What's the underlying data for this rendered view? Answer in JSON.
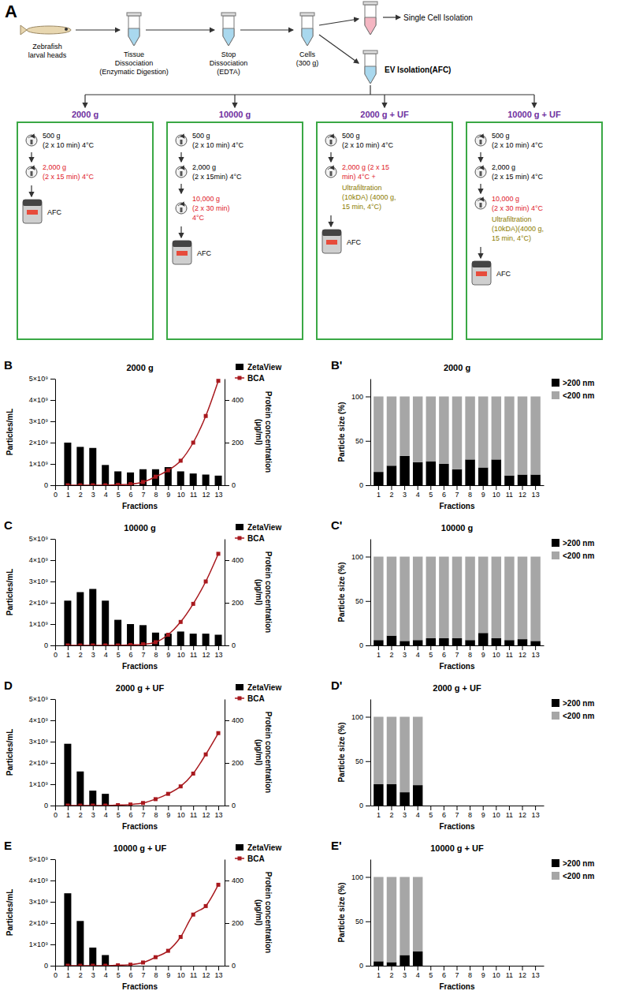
{
  "diagram": {
    "panel": "A",
    "flow": [
      {
        "label": [
          "Zebrafish",
          "larval heads"
        ]
      },
      {
        "label": [
          "Tissue",
          "Dissociation",
          "(Enzymatic Digestion)"
        ]
      },
      {
        "label": [
          "Stop",
          "Dissociation",
          "(EDTA)"
        ]
      },
      {
        "label": [
          "Cells",
          "(300 g)"
        ]
      }
    ],
    "branches": [
      {
        "label": "Single Cell Isolation"
      },
      {
        "label": "EV Isolation(AFC)"
      }
    ],
    "boxes": [
      {
        "title": "2000 g",
        "device": "AFC",
        "steps": [
          {
            "kind": "centrifuge",
            "color": "#000000",
            "lines": [
              "500 g",
              "(2 x 10 min) 4°C"
            ]
          },
          {
            "kind": "centrifuge",
            "color": "#e0202a",
            "lines": [
              "2,000 g",
              "(2 x 15 min) 4°C"
            ]
          }
        ]
      },
      {
        "title": "10000 g",
        "device": "AFC",
        "steps": [
          {
            "kind": "centrifuge",
            "color": "#000000",
            "lines": [
              "500 g",
              "(2 x 10 min) 4°C"
            ]
          },
          {
            "kind": "centrifuge",
            "color": "#000000",
            "lines": [
              "2,000 g",
              "(2 x 15min) 4°C"
            ]
          },
          {
            "kind": "centrifuge",
            "color": "#e0202a",
            "lines": [
              "10,000 g",
              "(2 x 30 min)",
              "4°C"
            ]
          }
        ]
      },
      {
        "title": "2000 g + UF",
        "device": "AFC",
        "steps": [
          {
            "kind": "centrifuge",
            "color": "#000000",
            "lines": [
              "500 g",
              "(2 x 10 min) 4°C"
            ]
          },
          {
            "kind": "centrifuge",
            "color": "#e0202a",
            "lines": [
              "2,000 g (2 x 15",
              "min) 4°C +"
            ]
          },
          {
            "kind": "filter",
            "color": "#8c7b00",
            "lines": [
              "Ultrafiltration",
              "(10kDA) (4000 g,",
              "15 min, 4°C)"
            ]
          }
        ]
      },
      {
        "title": "10000 g + UF",
        "device": "AFC",
        "steps": [
          {
            "kind": "centrifuge",
            "color": "#000000",
            "lines": [
              "500 g",
              "(2 x 10 min) 4°C"
            ]
          },
          {
            "kind": "centrifuge",
            "color": "#000000",
            "lines": [
              "2,000 g",
              "(2 x 15 min) 4°C"
            ]
          },
          {
            "kind": "centrifuge",
            "color": "#e0202a",
            "lines": [
              "10,000 g",
              "(2 x 30 min) 4°C"
            ]
          },
          {
            "kind": "filter",
            "color": "#8c7b00",
            "lines": [
              "Ultrafiltration",
              "(10kDA)(4000 g,",
              "15 min, 4°C)"
            ]
          }
        ]
      }
    ]
  },
  "chart_data": [
    {
      "type": "bar",
      "panel": "B",
      "title": "2000 g",
      "xlabel": "Fractions",
      "ylabel": "Particles/mL",
      "y2label": "Protein concentration (µg/ml)",
      "x": [
        1,
        2,
        3,
        4,
        5,
        6,
        7,
        8,
        9,
        10,
        11,
        12,
        13
      ],
      "xlim": [
        0,
        13.5
      ],
      "xticks": [
        0,
        1,
        2,
        3,
        4,
        5,
        6,
        7,
        8,
        9,
        10,
        11,
        12,
        13
      ],
      "ylim": [
        0,
        5000000000
      ],
      "yticks": [
        0,
        {
          "value": 1000000000,
          "label": "1×10⁹"
        },
        {
          "value": 2000000000,
          "label": "2×10⁹"
        },
        {
          "value": 3000000000,
          "label": "3×10⁹"
        },
        {
          "value": 4000000000,
          "label": "4×10⁹"
        },
        {
          "value": 5000000000,
          "label": "5×10⁹"
        }
      ],
      "y2lim": [
        0,
        500
      ],
      "y2ticks": [
        0,
        200,
        400
      ],
      "legend": "upper right",
      "series": [
        {
          "name": "ZetaView",
          "type": "bar",
          "color": "#000000",
          "values": [
            2000000000,
            1800000000,
            1750000000,
            950000000,
            650000000,
            600000000,
            750000000,
            750000000,
            850000000,
            650000000,
            550000000,
            500000000,
            450000000
          ]
        },
        {
          "name": "BCA",
          "type": "line",
          "axis": "y2",
          "color": "#a8191e",
          "marker": "square",
          "values": [
            0,
            0,
            0,
            0,
            2,
            5,
            15,
            40,
            70,
            115,
            200,
            325,
            490
          ]
        }
      ]
    },
    {
      "type": "bar",
      "stacked": true,
      "panel": "B'",
      "title": "2000 g",
      "xlabel": "Fractions",
      "ylabel": "Particle size (%)",
      "categories": [
        "1",
        "2",
        "3",
        "4",
        "5",
        "6",
        "7",
        "8",
        "9",
        "10",
        "11",
        "12",
        "13"
      ],
      "ylim": [
        0,
        120
      ],
      "yticks": [
        0,
        50,
        100
      ],
      "legend": "upper right",
      "series": [
        {
          "name": ">200 nm",
          "color": "#000000",
          "values": [
            15,
            22,
            33,
            26,
            27,
            24,
            18,
            29,
            20,
            29,
            11,
            12,
            12
          ]
        },
        {
          "name": "<200 nm",
          "color": "#a6a6a6",
          "values": [
            85,
            78,
            67,
            74,
            73,
            76,
            82,
            71,
            80,
            71,
            89,
            88,
            88
          ]
        }
      ]
    },
    {
      "type": "bar",
      "panel": "C",
      "title": "10000 g",
      "xlabel": "Fractions",
      "ylabel": "Particles/mL",
      "y2label": "Protein concentration (µg/ml)",
      "x": [
        1,
        2,
        3,
        4,
        5,
        6,
        7,
        8,
        9,
        10,
        11,
        12,
        13
      ],
      "xlim": [
        0,
        13.5
      ],
      "xticks": [
        0,
        1,
        2,
        3,
        4,
        5,
        6,
        7,
        8,
        9,
        10,
        11,
        12,
        13
      ],
      "ylim": [
        0,
        5000000000
      ],
      "yticks": [
        0,
        {
          "value": 1000000000,
          "label": "1×10⁹"
        },
        {
          "value": 2000000000,
          "label": "2×10⁹"
        },
        {
          "value": 3000000000,
          "label": "3×10⁹"
        },
        {
          "value": 4000000000,
          "label": "4×10⁹"
        },
        {
          "value": 5000000000,
          "label": "5×10⁹"
        }
      ],
      "y2lim": [
        0,
        500
      ],
      "y2ticks": [
        0,
        200,
        400
      ],
      "legend": "upper right",
      "series": [
        {
          "name": "ZetaView",
          "type": "bar",
          "color": "#000000",
          "values": [
            2100000000,
            2500000000,
            2650000000,
            2100000000,
            1200000000,
            1000000000,
            950000000,
            600000000,
            550000000,
            650000000,
            550000000,
            550000000,
            500000000
          ]
        },
        {
          "name": "BCA",
          "type": "line",
          "axis": "y2",
          "color": "#a8191e",
          "marker": "square",
          "values": [
            0,
            0,
            0,
            0,
            0,
            2,
            5,
            15,
            50,
            110,
            195,
            300,
            430
          ]
        }
      ]
    },
    {
      "type": "bar",
      "stacked": true,
      "panel": "C'",
      "title": "10000 g",
      "xlabel": "Fractions",
      "ylabel": "Particle size (%)",
      "categories": [
        "1",
        "2",
        "3",
        "4",
        "5",
        "6",
        "7",
        "8",
        "9",
        "10",
        "11",
        "12",
        "13"
      ],
      "ylim": [
        0,
        120
      ],
      "yticks": [
        0,
        50,
        100
      ],
      "legend": "upper right",
      "series": [
        {
          "name": ">200 nm",
          "color": "#000000",
          "values": [
            6,
            11,
            5,
            6,
            8,
            8,
            8,
            6,
            14,
            8,
            6,
            7,
            5
          ]
        },
        {
          "name": "<200 nm",
          "color": "#a6a6a6",
          "values": [
            94,
            89,
            95,
            94,
            92,
            92,
            92,
            94,
            86,
            92,
            94,
            93,
            95
          ]
        }
      ]
    },
    {
      "type": "bar",
      "panel": "D",
      "title": "2000 g + UF",
      "xlabel": "Fractions",
      "ylabel": "Particles/mL",
      "y2label": "Protein concentration (µg/ml)",
      "x": [
        1,
        2,
        3,
        4,
        5,
        6,
        7,
        8,
        9,
        10,
        11,
        12,
        13
      ],
      "xlim": [
        0,
        13.5
      ],
      "xticks": [
        0,
        1,
        2,
        3,
        4,
        5,
        6,
        7,
        8,
        9,
        10,
        11,
        12,
        13
      ],
      "ylim": [
        0,
        5000000000
      ],
      "yticks": [
        0,
        {
          "value": 1000000000,
          "label": "1×10⁹"
        },
        {
          "value": 2000000000,
          "label": "2×10⁹"
        },
        {
          "value": 3000000000,
          "label": "3×10⁹"
        },
        {
          "value": 4000000000,
          "label": "4×10⁹"
        },
        {
          "value": 5000000000,
          "label": "5×10⁹"
        }
      ],
      "y2lim": [
        0,
        500
      ],
      "y2ticks": [
        0,
        200,
        400
      ],
      "legend": "upper right",
      "series": [
        {
          "name": "ZetaView",
          "type": "bar",
          "color": "#000000",
          "values": [
            2900000000,
            1600000000,
            700000000,
            550000000,
            null,
            null,
            null,
            null,
            null,
            null,
            null,
            null,
            null
          ]
        },
        {
          "name": "BCA",
          "type": "line",
          "axis": "y2",
          "color": "#a8191e",
          "marker": "square",
          "values": [
            0,
            0,
            0,
            0,
            2,
            5,
            12,
            30,
            55,
            90,
            150,
            240,
            340
          ]
        }
      ]
    },
    {
      "type": "bar",
      "stacked": true,
      "panel": "D'",
      "title": "2000 g + UF",
      "xlabel": "Fractions",
      "ylabel": "Particle size (%)",
      "categories": [
        "1",
        "2",
        "3",
        "4",
        "5",
        "6",
        "7",
        "8",
        "9",
        "10",
        "11",
        "12",
        "13"
      ],
      "ylim": [
        0,
        120
      ],
      "yticks": [
        0,
        50,
        100
      ],
      "legend": "upper right",
      "series": [
        {
          "name": ">200 nm",
          "color": "#000000",
          "values": [
            24,
            24,
            15,
            23,
            null,
            null,
            null,
            null,
            null,
            null,
            null,
            null,
            null
          ]
        },
        {
          "name": "<200 nm",
          "color": "#a6a6a6",
          "values": [
            76,
            76,
            85,
            77,
            null,
            null,
            null,
            null,
            null,
            null,
            null,
            null,
            null
          ]
        }
      ]
    },
    {
      "type": "bar",
      "panel": "E",
      "title": "10000 g + UF",
      "xlabel": "Fractions",
      "ylabel": "Particles/mL",
      "y2label": "Protein concentration (µg/ml)",
      "x": [
        1,
        2,
        3,
        4,
        5,
        6,
        7,
        8,
        9,
        10,
        11,
        12,
        13
      ],
      "xlim": [
        0,
        13.5
      ],
      "xticks": [
        0,
        1,
        2,
        3,
        4,
        5,
        6,
        7,
        8,
        9,
        10,
        11,
        12,
        13
      ],
      "ylim": [
        0,
        5000000000
      ],
      "yticks": [
        0,
        {
          "value": 1000000000,
          "label": "1×10⁹"
        },
        {
          "value": 2000000000,
          "label": "2×10⁹"
        },
        {
          "value": 3000000000,
          "label": "3×10⁹"
        },
        {
          "value": 4000000000,
          "label": "4×10⁹"
        },
        {
          "value": 5000000000,
          "label": "5×10⁹"
        }
      ],
      "y2lim": [
        0,
        500
      ],
      "y2ticks": [
        0,
        200,
        400
      ],
      "legend": "upper right",
      "series": [
        {
          "name": "ZetaView",
          "type": "bar",
          "color": "#000000",
          "values": [
            3400000000,
            2100000000,
            850000000,
            500000000,
            null,
            null,
            null,
            null,
            null,
            null,
            null,
            null,
            null
          ]
        },
        {
          "name": "BCA",
          "type": "line",
          "axis": "y2",
          "color": "#a8191e",
          "marker": "square",
          "values": [
            0,
            0,
            0,
            0,
            2,
            5,
            15,
            40,
            70,
            135,
            240,
            280,
            380
          ]
        }
      ]
    },
    {
      "type": "bar",
      "stacked": true,
      "panel": "E'",
      "title": "10000 g + UF",
      "xlabel": "Fractions",
      "ylabel": "Particle size (%)",
      "categories": [
        "1",
        "2",
        "3",
        "4",
        "5",
        "6",
        "7",
        "8",
        "9",
        "10",
        "11",
        "12",
        "13"
      ],
      "ylim": [
        0,
        120
      ],
      "yticks": [
        0,
        50,
        100
      ],
      "legend": "upper right",
      "series": [
        {
          "name": ">200 nm",
          "color": "#000000",
          "values": [
            5,
            4,
            12,
            16,
            null,
            null,
            null,
            null,
            null,
            null,
            null,
            null,
            null
          ]
        },
        {
          "name": "<200 nm",
          "color": "#a6a6a6",
          "values": [
            95,
            96,
            88,
            84,
            null,
            null,
            null,
            null,
            null,
            null,
            null,
            null,
            null
          ]
        }
      ]
    }
  ]
}
